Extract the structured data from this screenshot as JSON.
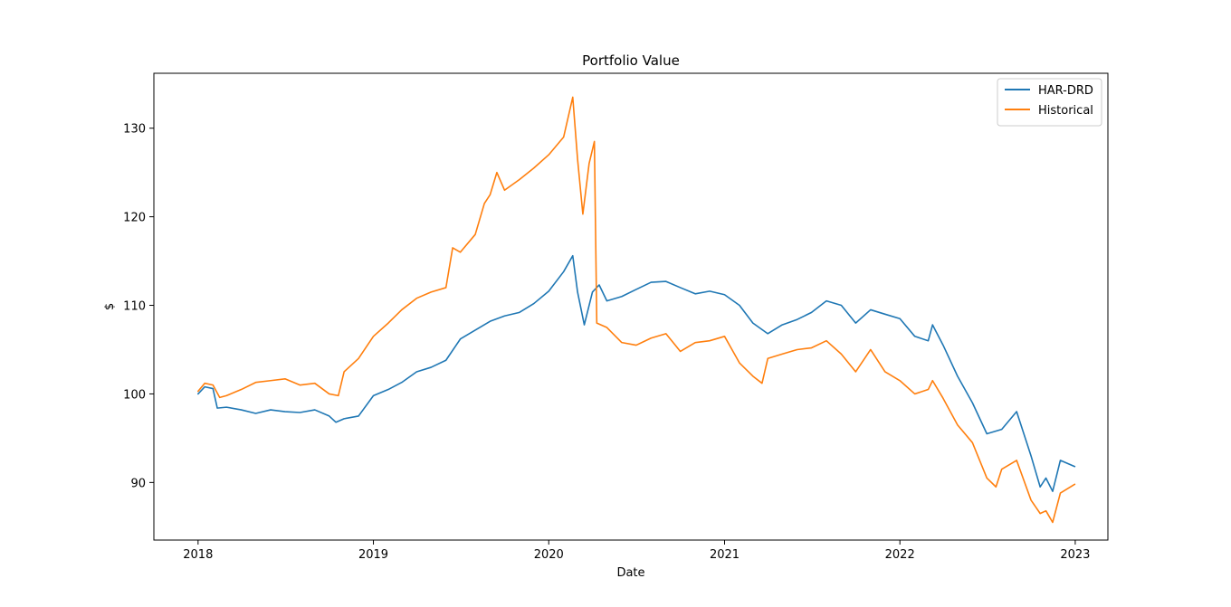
{
  "chart_data": {
    "type": "line",
    "title": "Portfolio Value",
    "xlabel": "Date",
    "ylabel": "$",
    "xlim": [
      "2017-10-01",
      "2023-03-10"
    ],
    "ylim": [
      83.5,
      136.2
    ],
    "x_ticks": [
      "2018-01-01",
      "2019-01-01",
      "2020-01-01",
      "2021-01-01",
      "2022-01-01",
      "2023-01-01"
    ],
    "x_tick_labels": [
      "2018",
      "2019",
      "2020",
      "2021",
      "2022",
      "2023"
    ],
    "y_ticks": [
      90,
      100,
      110,
      120,
      130
    ],
    "y_tick_labels": [
      "90",
      "100",
      "110",
      "120",
      "130"
    ],
    "grid": false,
    "legend_position": "top-right",
    "series": [
      {
        "name": "HAR-DRD",
        "color": "#1f77b4",
        "points": [
          [
            "2018-01-01",
            100.0
          ],
          [
            "2018-01-15",
            100.8
          ],
          [
            "2018-02-01",
            100.6
          ],
          [
            "2018-02-10",
            98.4
          ],
          [
            "2018-03-01",
            98.5
          ],
          [
            "2018-04-01",
            98.2
          ],
          [
            "2018-05-01",
            97.8
          ],
          [
            "2018-06-01",
            98.2
          ],
          [
            "2018-07-01",
            98.0
          ],
          [
            "2018-08-01",
            97.9
          ],
          [
            "2018-09-01",
            98.2
          ],
          [
            "2018-10-01",
            97.5
          ],
          [
            "2018-10-15",
            96.8
          ],
          [
            "2018-11-01",
            97.2
          ],
          [
            "2018-12-01",
            97.5
          ],
          [
            "2019-01-01",
            99.8
          ],
          [
            "2019-02-01",
            100.5
          ],
          [
            "2019-03-01",
            101.3
          ],
          [
            "2019-04-01",
            102.5
          ],
          [
            "2019-05-01",
            103.0
          ],
          [
            "2019-06-01",
            103.8
          ],
          [
            "2019-07-01",
            106.2
          ],
          [
            "2019-08-01",
            107.2
          ],
          [
            "2019-09-01",
            108.2
          ],
          [
            "2019-10-01",
            108.8
          ],
          [
            "2019-11-01",
            109.2
          ],
          [
            "2019-12-01",
            110.2
          ],
          [
            "2020-01-01",
            111.6
          ],
          [
            "2020-02-01",
            113.8
          ],
          [
            "2020-02-20",
            115.6
          ],
          [
            "2020-03-01",
            111.5
          ],
          [
            "2020-03-15",
            107.8
          ],
          [
            "2020-04-01",
            111.5
          ],
          [
            "2020-04-15",
            112.3
          ],
          [
            "2020-05-01",
            110.5
          ],
          [
            "2020-06-01",
            111.0
          ],
          [
            "2020-07-01",
            111.8
          ],
          [
            "2020-08-01",
            112.6
          ],
          [
            "2020-09-01",
            112.7
          ],
          [
            "2020-10-01",
            112.0
          ],
          [
            "2020-11-01",
            111.3
          ],
          [
            "2020-12-01",
            111.6
          ],
          [
            "2021-01-01",
            111.2
          ],
          [
            "2021-02-01",
            110.0
          ],
          [
            "2021-03-01",
            108.0
          ],
          [
            "2021-04-01",
            106.8
          ],
          [
            "2021-05-01",
            107.8
          ],
          [
            "2021-06-01",
            108.4
          ],
          [
            "2021-07-01",
            109.2
          ],
          [
            "2021-08-01",
            110.5
          ],
          [
            "2021-09-01",
            110.0
          ],
          [
            "2021-10-01",
            108.0
          ],
          [
            "2021-11-01",
            109.5
          ],
          [
            "2021-12-01",
            109.0
          ],
          [
            "2022-01-01",
            108.5
          ],
          [
            "2022-02-01",
            106.5
          ],
          [
            "2022-03-01",
            106.0
          ],
          [
            "2022-03-10",
            107.8
          ],
          [
            "2022-04-01",
            105.5
          ],
          [
            "2022-05-01",
            102.0
          ],
          [
            "2022-06-01",
            99.0
          ],
          [
            "2022-07-01",
            95.5
          ],
          [
            "2022-08-01",
            96.0
          ],
          [
            "2022-09-01",
            98.0
          ],
          [
            "2022-10-01",
            93.0
          ],
          [
            "2022-10-20",
            89.5
          ],
          [
            "2022-11-01",
            90.5
          ],
          [
            "2022-11-15",
            89.0
          ],
          [
            "2022-12-01",
            92.5
          ],
          [
            "2022-12-31",
            91.8
          ]
        ]
      },
      {
        "name": "Historical",
        "color": "#ff7f0e",
        "points": [
          [
            "2018-01-01",
            100.3
          ],
          [
            "2018-01-15",
            101.2
          ],
          [
            "2018-02-01",
            101.0
          ],
          [
            "2018-02-15",
            99.6
          ],
          [
            "2018-03-01",
            99.8
          ],
          [
            "2018-04-01",
            100.5
          ],
          [
            "2018-05-01",
            101.3
          ],
          [
            "2018-06-01",
            101.5
          ],
          [
            "2018-07-01",
            101.7
          ],
          [
            "2018-08-01",
            101.0
          ],
          [
            "2018-09-01",
            101.2
          ],
          [
            "2018-10-01",
            100.0
          ],
          [
            "2018-10-20",
            99.8
          ],
          [
            "2018-11-01",
            102.5
          ],
          [
            "2018-12-01",
            104.0
          ],
          [
            "2019-01-01",
            106.5
          ],
          [
            "2019-02-01",
            108.0
          ],
          [
            "2019-03-01",
            109.5
          ],
          [
            "2019-04-01",
            110.8
          ],
          [
            "2019-05-01",
            111.5
          ],
          [
            "2019-06-01",
            112.0
          ],
          [
            "2019-06-15",
            116.5
          ],
          [
            "2019-07-01",
            116.0
          ],
          [
            "2019-08-01",
            118.0
          ],
          [
            "2019-08-20",
            121.5
          ],
          [
            "2019-09-01",
            122.5
          ],
          [
            "2019-09-15",
            125.0
          ],
          [
            "2019-10-01",
            123.0
          ],
          [
            "2019-11-01",
            124.2
          ],
          [
            "2019-12-01",
            125.5
          ],
          [
            "2020-01-01",
            127.0
          ],
          [
            "2020-02-01",
            129.0
          ],
          [
            "2020-02-20",
            133.5
          ],
          [
            "2020-03-01",
            126.5
          ],
          [
            "2020-03-12",
            120.3
          ],
          [
            "2020-03-25",
            126.0
          ],
          [
            "2020-04-05",
            128.5
          ],
          [
            "2020-04-10",
            108.0
          ],
          [
            "2020-05-01",
            107.5
          ],
          [
            "2020-06-01",
            105.8
          ],
          [
            "2020-07-01",
            105.5
          ],
          [
            "2020-08-01",
            106.3
          ],
          [
            "2020-09-01",
            106.8
          ],
          [
            "2020-10-01",
            104.8
          ],
          [
            "2020-11-01",
            105.8
          ],
          [
            "2020-12-01",
            106.0
          ],
          [
            "2021-01-01",
            106.5
          ],
          [
            "2021-02-01",
            103.5
          ],
          [
            "2021-03-01",
            102.0
          ],
          [
            "2021-03-20",
            101.2
          ],
          [
            "2021-04-01",
            104.0
          ],
          [
            "2021-05-01",
            104.5
          ],
          [
            "2021-06-01",
            105.0
          ],
          [
            "2021-07-01",
            105.2
          ],
          [
            "2021-08-01",
            106.0
          ],
          [
            "2021-09-01",
            104.5
          ],
          [
            "2021-10-01",
            102.5
          ],
          [
            "2021-11-01",
            105.0
          ],
          [
            "2021-12-01",
            102.5
          ],
          [
            "2022-01-01",
            101.5
          ],
          [
            "2022-02-01",
            100.0
          ],
          [
            "2022-03-01",
            100.5
          ],
          [
            "2022-03-10",
            101.5
          ],
          [
            "2022-04-01",
            99.5
          ],
          [
            "2022-05-01",
            96.5
          ],
          [
            "2022-06-01",
            94.5
          ],
          [
            "2022-07-01",
            90.5
          ],
          [
            "2022-07-20",
            89.5
          ],
          [
            "2022-08-01",
            91.5
          ],
          [
            "2022-09-01",
            92.5
          ],
          [
            "2022-10-01",
            88.0
          ],
          [
            "2022-10-20",
            86.5
          ],
          [
            "2022-11-01",
            86.8
          ],
          [
            "2022-11-15",
            85.5
          ],
          [
            "2022-12-01",
            88.8
          ],
          [
            "2022-12-31",
            89.8
          ]
        ]
      }
    ]
  }
}
